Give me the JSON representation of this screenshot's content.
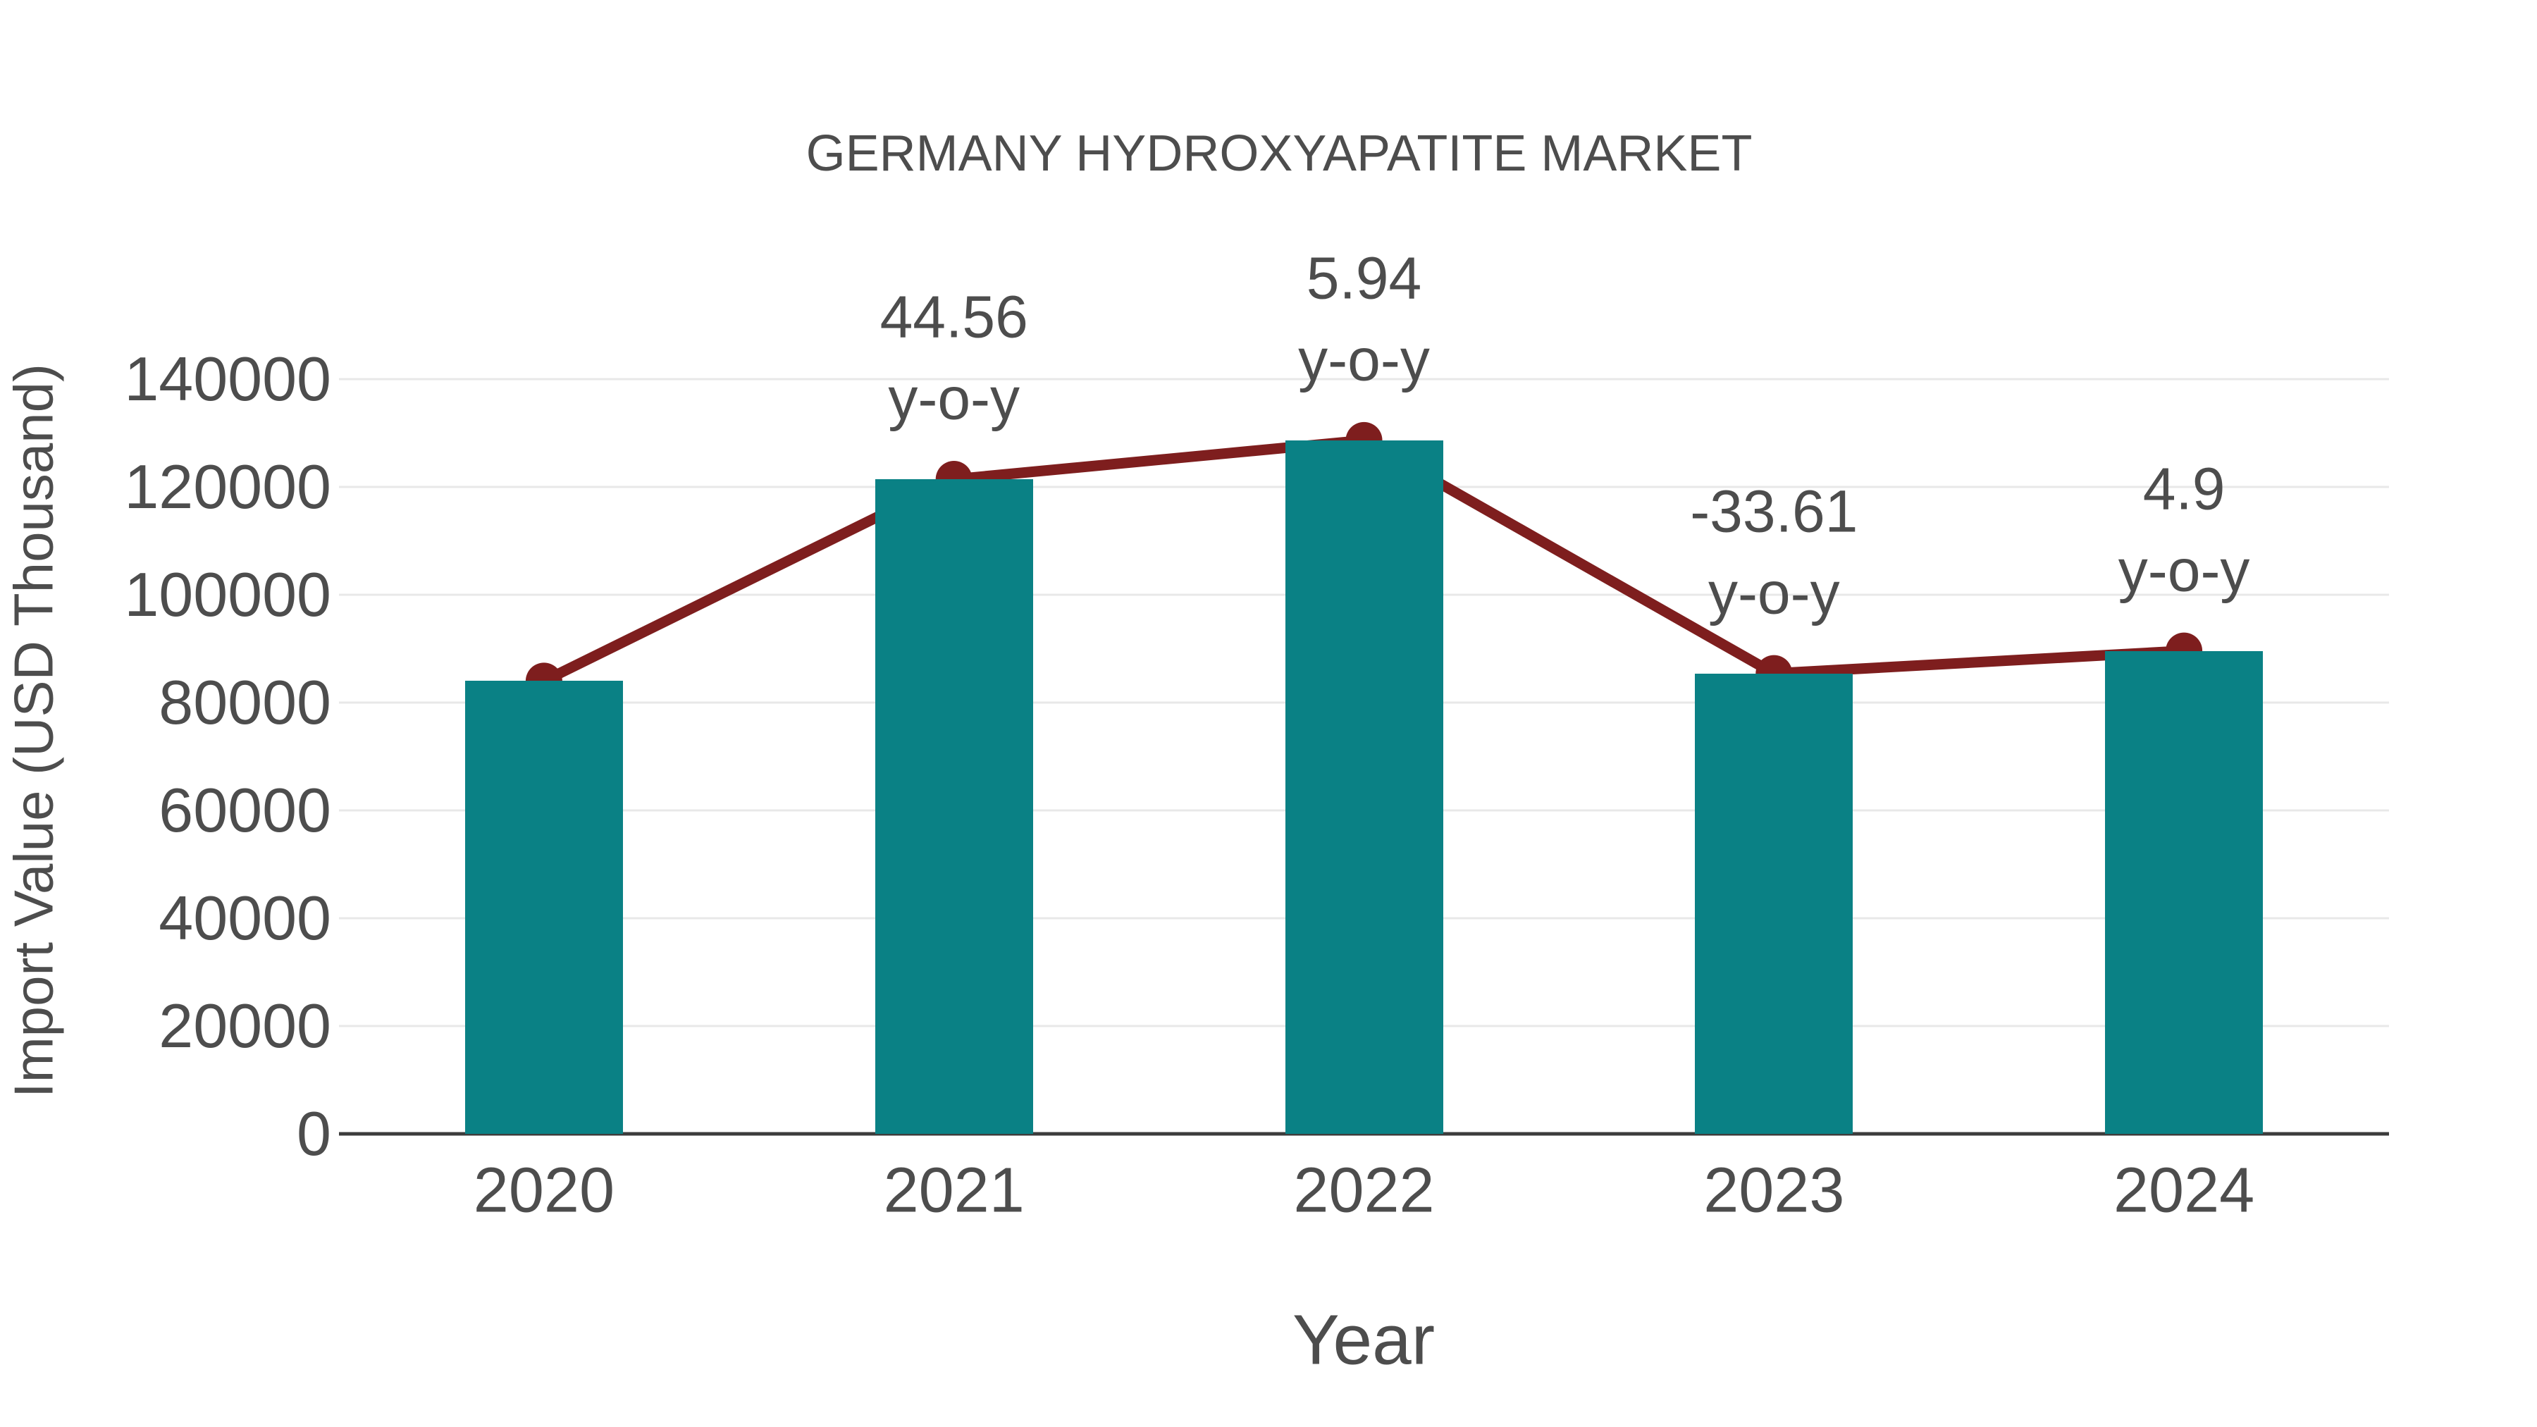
{
  "title": "GERMANY HYDROXYAPATITE MARKET",
  "colors": {
    "bar": "#0a8185",
    "line": "#7e1e1e",
    "marker": "#7e1e1e",
    "grid": "#e8e8e8",
    "axis": "#3c3c3c",
    "text": "#4d4d4d",
    "background": "#ffffff"
  },
  "chart_data": {
    "type": "bar+line combo",
    "title": "GERMANY HYDROXYAPATITE MARKET",
    "xlabel": "Year",
    "ylabel": "Import Value (USD Thousand)",
    "categories": [
      "2020",
      "2021",
      "2022",
      "2023",
      "2024"
    ],
    "series": [
      {
        "name": "Import Value (USD Thousand)",
        "type": "bar",
        "values": [
          84000,
          121430,
          128645,
          85405,
          89590
        ]
      },
      {
        "name": "Import Value trend (line with markers)",
        "type": "line",
        "values": [
          84000,
          121430,
          128645,
          85405,
          89590
        ]
      }
    ],
    "yoy_percent": [
      null,
      44.56,
      5.94,
      -33.61,
      4.9
    ],
    "annotations": [
      {
        "category": "2021",
        "value_label": "44.56",
        "suffix_label": "y-o-y"
      },
      {
        "category": "2022",
        "value_label": "5.94",
        "suffix_label": "y-o-y"
      },
      {
        "category": "2023",
        "value_label": "-33.61",
        "suffix_label": "y-o-y"
      },
      {
        "category": "2024",
        "value_label": "4.9",
        "suffix_label": "y-o-y"
      }
    ],
    "ylim": [
      0,
      140000
    ],
    "yticks": [
      {
        "value": 0,
        "label": "0"
      },
      {
        "value": 20000,
        "label": "20000"
      },
      {
        "value": 40000,
        "label": "40000"
      },
      {
        "value": 60000,
        "label": "60000"
      },
      {
        "value": 80000,
        "label": "80000"
      },
      {
        "value": 100000,
        "label": "100000"
      },
      {
        "value": 120000,
        "label": "120000"
      },
      {
        "value": 140000,
        "label": "140000"
      }
    ],
    "grid": "horizontal",
    "legend": "none"
  }
}
